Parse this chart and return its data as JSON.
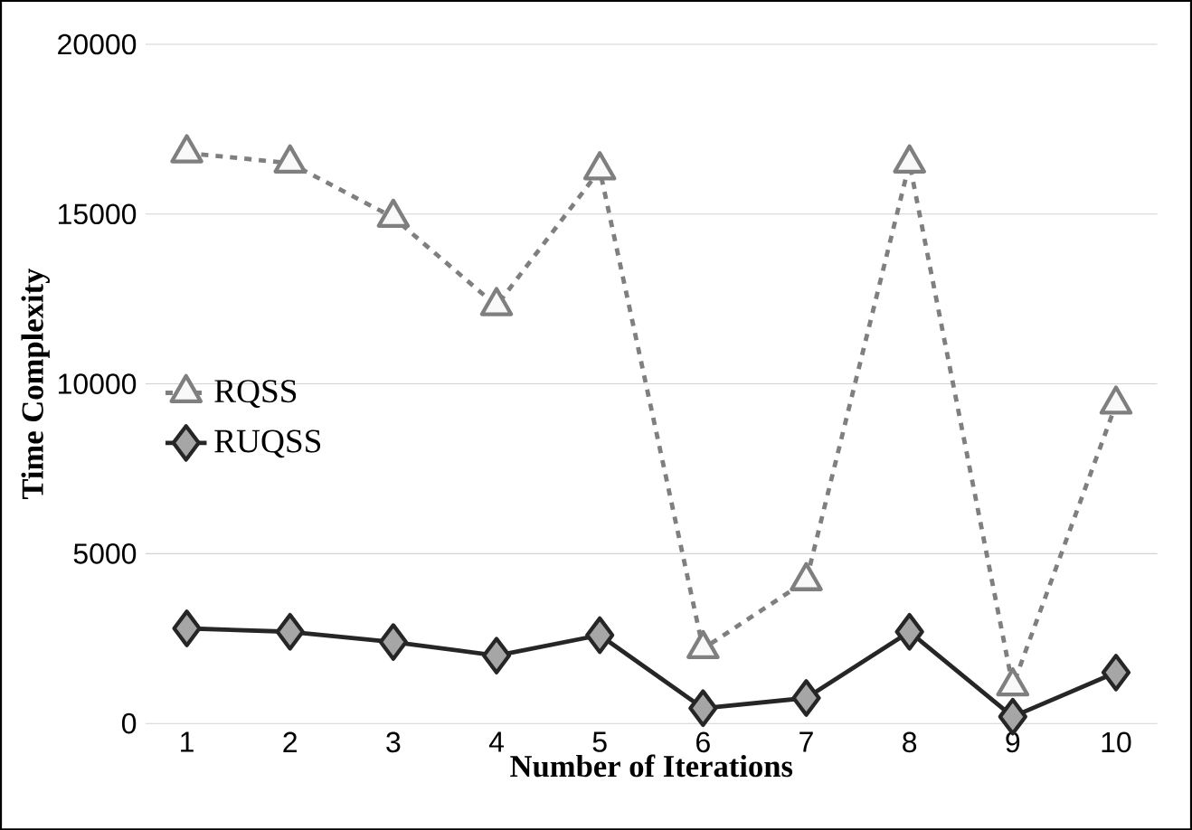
{
  "chart_data": {
    "type": "line",
    "xlabel": "Number of Iterations",
    "ylabel": "Time Complexity",
    "categories": [
      "1",
      "2",
      "3",
      "4",
      "5",
      "6",
      "7",
      "8",
      "9",
      "10"
    ],
    "series": [
      {
        "name": "RQSS",
        "color": "#7f7f7f",
        "marker": "triangle",
        "line_style": "dashed",
        "values": [
          16800,
          16500,
          14900,
          12300,
          16300,
          2200,
          4200,
          16500,
          1100,
          9400
        ]
      },
      {
        "name": "RUQSS",
        "color": "#262626",
        "marker": "diamond",
        "line_style": "solid",
        "values": [
          2800,
          2700,
          2400,
          2000,
          2600,
          450,
          750,
          2700,
          200,
          1500
        ]
      }
    ],
    "ylim": [
      0,
      20000
    ],
    "yticks": [
      0,
      5000,
      10000,
      15000,
      20000
    ],
    "grid": "y",
    "legend": "left"
  }
}
